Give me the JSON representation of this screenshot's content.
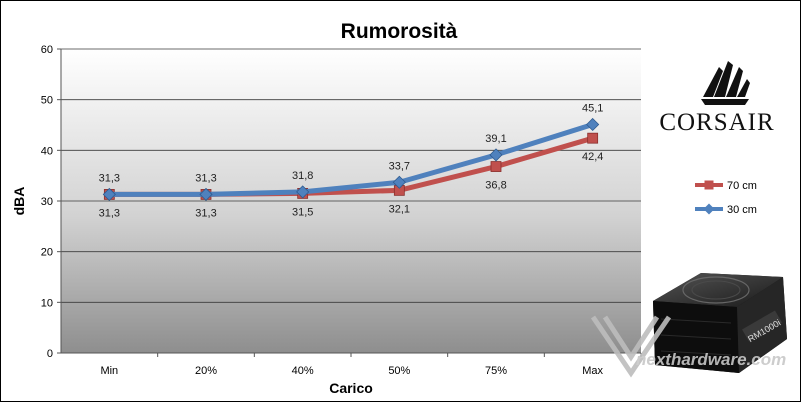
{
  "chart_data": {
    "type": "line",
    "title": "Rumorosità",
    "xlabel": "Carico",
    "ylabel": "dBA",
    "categories": [
      "Min",
      "20%",
      "40%",
      "50%",
      "75%",
      "Max"
    ],
    "ylim": [
      0,
      60
    ],
    "yticks": [
      "0",
      "10",
      "20",
      "30",
      "40",
      "50",
      "60"
    ],
    "grid": true,
    "legend_position": "right",
    "series": [
      {
        "name": "70 cm",
        "values": [
          31.3,
          31.3,
          31.5,
          32.1,
          36.8,
          42.4
        ],
        "labels": [
          "31,3",
          "31,3",
          "31,5",
          "32,1",
          "36,8",
          "42,4"
        ],
        "color": "#c0504d",
        "marker": "square",
        "label_position": "below"
      },
      {
        "name": "30 cm",
        "values": [
          31.3,
          31.3,
          31.8,
          33.7,
          39.1,
          45.1
        ],
        "labels": [
          "31,3",
          "31,3",
          "31,8",
          "33,7",
          "39,1",
          "45,1"
        ],
        "color": "#4f81bd",
        "marker": "diamond",
        "label_position": "above"
      }
    ]
  },
  "branding": {
    "logo_text": "CORSAIR",
    "product_model": "RM1000i",
    "watermark": "nexthardware.com"
  }
}
